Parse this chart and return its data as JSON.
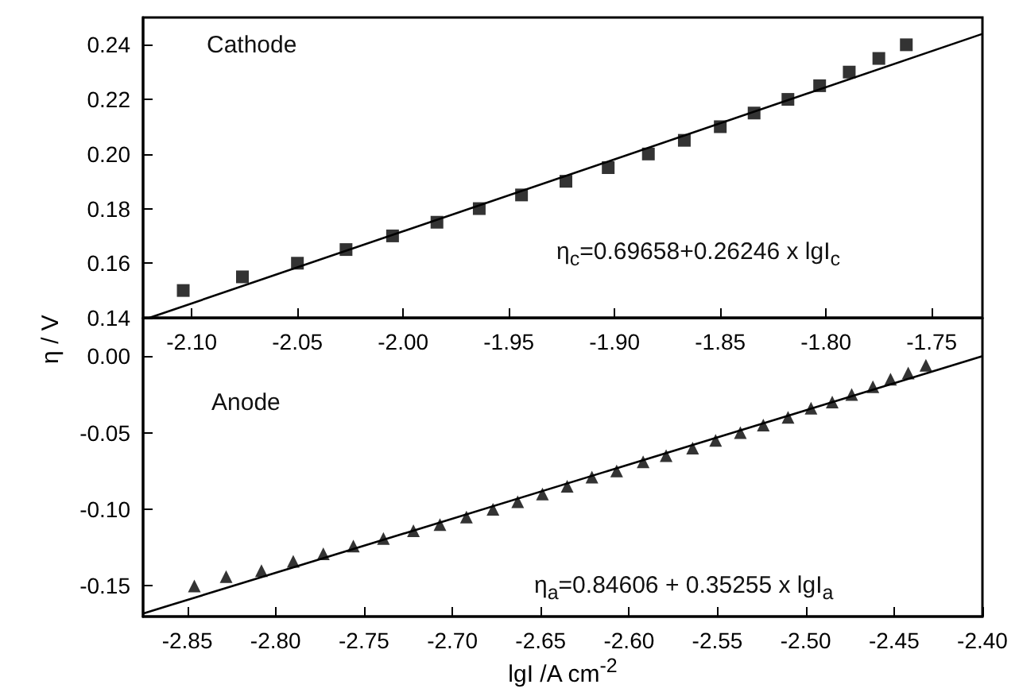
{
  "chart_data": [
    {
      "type": "scatter",
      "ylabel": "η / V",
      "annotations": [
        "Cathode",
        "η$_{c}$=0.69658+0.26246 x lgI$_{c}$"
      ],
      "xlim": [
        -2.123,
        -1.726
      ],
      "xticks": [
        {
          "value": -2.1,
          "label": "-2.10"
        },
        -2.05,
        {
          "value": -2.0,
          "label": "-2.00"
        },
        -1.95,
        {
          "value": -1.9,
          "label": "-1.90"
        },
        -1.85,
        {
          "value": -1.8,
          "label": "-1.80"
        },
        -1.75
      ],
      "ylim": [
        0.14,
        0.25
      ],
      "yticks": [
        0.14,
        0.16,
        0.18,
        {
          "value": 0.2,
          "label": "0.20"
        },
        0.22,
        0.24
      ],
      "x": [
        -2.104,
        -2.076,
        -2.05,
        -2.027,
        -2.005,
        -1.984,
        -1.964,
        -1.944,
        -1.923,
        -1.903,
        -1.884,
        -1.867,
        -1.85,
        -1.834,
        -1.818,
        -1.803,
        -1.789,
        -1.775,
        -1.762
      ],
      "series": [
        {
          "marker": "square",
          "color": "#000000",
          "values": [
            0.15,
            0.155,
            0.16,
            0.165,
            0.17,
            0.175,
            0.18,
            0.185,
            0.19,
            0.195,
            0.2,
            0.205,
            0.21,
            0.215,
            0.22,
            0.225,
            0.23,
            0.235,
            0.24
          ]
        },
        {
          "type": "line",
          "marker": "none",
          "color": "#000000",
          "x": [
            -2.12,
            -1.726
          ],
          "values": [
            0.14,
            0.244
          ]
        }
      ]
    },
    {
      "type": "scatter",
      "xlabel": "lgI  /A cm$^{-2}$",
      "annotations": [
        "Anode",
        "η$_{a}$=0.84606 + 0.35255 x lgI$_{a}$"
      ],
      "xlim": [
        -2.875,
        -2.4
      ],
      "xticks": [
        -2.85,
        {
          "value": -2.8,
          "label": "-2.80"
        },
        -2.75,
        {
          "value": -2.7,
          "label": "-2.70"
        },
        -2.65,
        {
          "value": -2.6,
          "label": "-2.60"
        },
        -2.55,
        {
          "value": -2.5,
          "label": "-2.50"
        },
        -2.45,
        {
          "value": -2.4,
          "label": "-2.40"
        }
      ],
      "ylim": [
        -0.17,
        0.025
      ],
      "yticks": [
        -0.15,
        {
          "value": -0.1,
          "label": "-0.10"
        },
        -0.05,
        {
          "value": 0.0,
          "label": "0.00"
        }
      ],
      "x": [
        -2.846,
        -2.828,
        -2.808,
        -2.79,
        -2.773,
        -2.756,
        -2.739,
        -2.722,
        -2.707,
        -2.692,
        -2.677,
        -2.663,
        -2.649,
        -2.635,
        -2.621,
        -2.607,
        -2.592,
        -2.579,
        -2.564,
        -2.551,
        -2.537,
        -2.524,
        -2.51,
        -2.497,
        -2.485,
        -2.474,
        -2.462,
        -2.452,
        -2.442,
        -2.432
      ],
      "series": [
        {
          "marker": "triangle",
          "color": "#000000",
          "values": [
            -0.15,
            -0.144,
            -0.14,
            -0.134,
            -0.129,
            -0.124,
            -0.119,
            -0.114,
            -0.11,
            -0.105,
            -0.1,
            -0.095,
            -0.09,
            -0.085,
            -0.079,
            -0.075,
            -0.069,
            -0.065,
            -0.06,
            -0.055,
            -0.05,
            -0.045,
            -0.04,
            -0.034,
            -0.03,
            -0.025,
            -0.02,
            -0.015,
            -0.011,
            -0.006
          ]
        },
        {
          "type": "line",
          "marker": "none",
          "color": "#000000",
          "x": [
            -2.875,
            -2.4
          ],
          "values": [
            -0.168,
            0.0
          ]
        }
      ]
    }
  ]
}
